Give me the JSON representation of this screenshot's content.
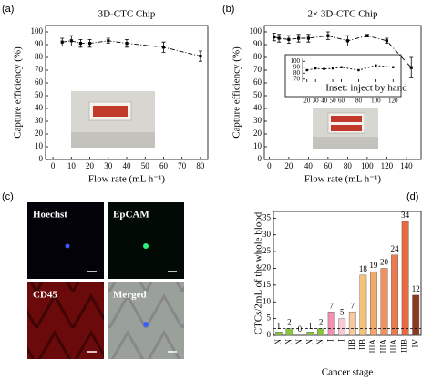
{
  "chart_data": [
    {
      "type": "line",
      "panel_label": "(a)",
      "title": "3D-CTC Chip",
      "x_label": "Flow rate (mL h⁻¹)",
      "y_label": "Capture efficiency (%)",
      "x": [
        5,
        10,
        15,
        20,
        30,
        40,
        60,
        80
      ],
      "values": [
        92,
        93,
        91,
        91,
        93,
        91,
        88,
        81
      ],
      "errors": [
        3,
        4,
        3,
        3,
        2,
        3,
        4,
        4
      ],
      "color": "#000000",
      "xlim": [
        -4,
        84
      ],
      "xticks": [
        0,
        10,
        20,
        30,
        40,
        50,
        60,
        70,
        80
      ],
      "ylim": [
        0,
        105
      ],
      "yticks": [
        0,
        10,
        20,
        30,
        40,
        50,
        60,
        70,
        80,
        90,
        100
      ]
    },
    {
      "type": "line",
      "panel_label": "(b)",
      "title": "2× 3D-CTC Chip",
      "x_label": "Flow rate (mL h⁻¹)",
      "y_label": "Capture efficiency (%)",
      "x": [
        5,
        10,
        20,
        30,
        40,
        60,
        80,
        100,
        120,
        145
      ],
      "values": [
        96,
        95,
        94,
        95,
        95,
        97,
        93,
        97,
        93,
        72
      ],
      "errors": [
        3,
        3,
        3,
        3,
        3,
        3,
        4,
        1,
        2,
        8
      ],
      "color": "#000000",
      "xlim": [
        -5,
        155
      ],
      "xticks": [
        0,
        20,
        40,
        60,
        80,
        100,
        120,
        140
      ],
      "ylim": [
        0,
        105
      ],
      "yticks": [
        0,
        10,
        20,
        30,
        40,
        50,
        60,
        70,
        80,
        90,
        100
      ],
      "inset": {
        "type": "line",
        "label": "Inset: inject by hand",
        "x": [
          20,
          30,
          40,
          50,
          60,
          80,
          100,
          120
        ],
        "values": [
          85,
          88,
          87,
          88,
          90,
          85,
          93,
          90
        ],
        "xlim": [
          15,
          125
        ],
        "xticks": [
          20,
          30,
          40,
          50,
          60,
          80,
          100,
          120
        ],
        "ylim": [
          65,
          105
        ],
        "yticks": [
          70,
          80,
          90,
          100
        ]
      }
    },
    {
      "type": "bar",
      "panel_label": "(d)",
      "x_label": "Cancer stage",
      "y_label": "CTCs/2mL of the whole blood",
      "categories": [
        "N",
        "N",
        "N",
        "N",
        "N",
        "I",
        "I",
        "IIB",
        "IIB",
        "IIIA",
        "IIIA",
        "IIIA",
        "IIIB",
        "IV"
      ],
      "values": [
        1,
        2,
        0,
        1,
        2,
        7,
        5,
        7,
        18,
        19,
        20,
        24,
        34,
        12
      ],
      "colors": [
        "#8cc63f",
        "#8cc63f",
        "#8cc63f",
        "#8cc63f",
        "#8cc63f",
        "#f48fb1",
        "#f8c8d4",
        "#f7c9a0",
        "#f6c27a",
        "#f4a86a",
        "#f0915e",
        "#ec7c50",
        "#e86a40",
        "#8b3a1e"
      ],
      "reference_line": 2,
      "ylim": [
        0,
        37
      ],
      "yticks": [
        0,
        5,
        10,
        15,
        20,
        25,
        30,
        35
      ]
    }
  ],
  "figure_c": {
    "panel_label": "(c)",
    "images": [
      "Hoechst",
      "EpCAM",
      "CD45",
      "Merged"
    ]
  }
}
